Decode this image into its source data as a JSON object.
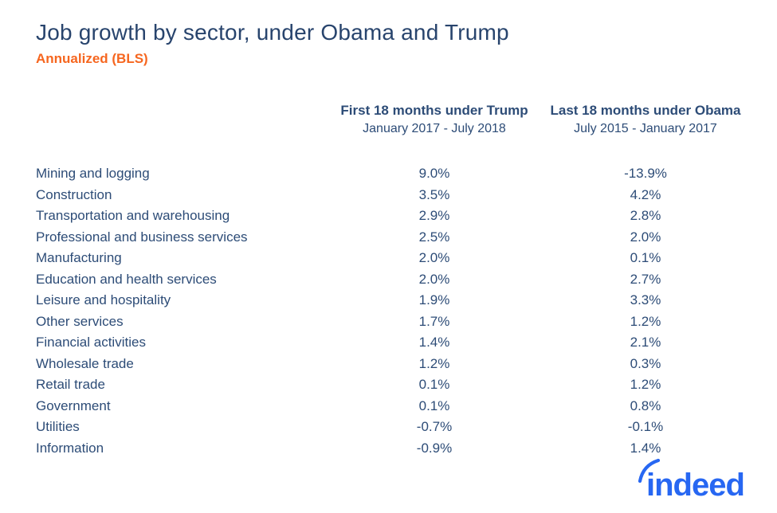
{
  "header": {
    "title": "Job growth by sector, under Obama and Trump",
    "subtitle": "Annualized (BLS)"
  },
  "logo": {
    "text": "indeed"
  },
  "colors": {
    "title_navy": "#28446d",
    "body_navy": "#2d4c77",
    "accent_orange": "#f6661f",
    "logo_blue": "#2767f2",
    "background": "#ffffff"
  },
  "chart_data": {
    "type": "table",
    "title": "Job growth by sector, under Obama and Trump",
    "subtitle": "Annualized (BLS)",
    "categories": [
      "Mining and logging",
      "Construction",
      "Transportation and warehousing",
      "Professional and business services",
      "Manufacturing",
      "Education and health services",
      "Leisure and hospitality",
      "Other services",
      "Financial activities",
      "Wholesale trade",
      "Retail trade",
      "Government",
      "Utilities",
      "Information"
    ],
    "series": [
      {
        "name": "First 18 months under Trump",
        "period": "January 2017 - July 2018",
        "values": [
          "9.0%",
          "3.5%",
          "2.9%",
          "2.5%",
          "2.0%",
          "2.0%",
          "1.9%",
          "1.7%",
          "1.4%",
          "1.2%",
          "0.1%",
          "0.1%",
          "-0.7%",
          "-0.9%"
        ]
      },
      {
        "name": "Last 18 months under Obama",
        "period": "July 2015 - January 2017",
        "values": [
          "-13.9%",
          "4.2%",
          "2.8%",
          "2.0%",
          "0.1%",
          "2.7%",
          "3.3%",
          "1.2%",
          "2.1%",
          "0.3%",
          "1.2%",
          "0.8%",
          "-0.1%",
          "1.4%"
        ]
      }
    ],
    "layout": {
      "grid": false,
      "value_alignment": "center",
      "label_column": "left"
    }
  }
}
